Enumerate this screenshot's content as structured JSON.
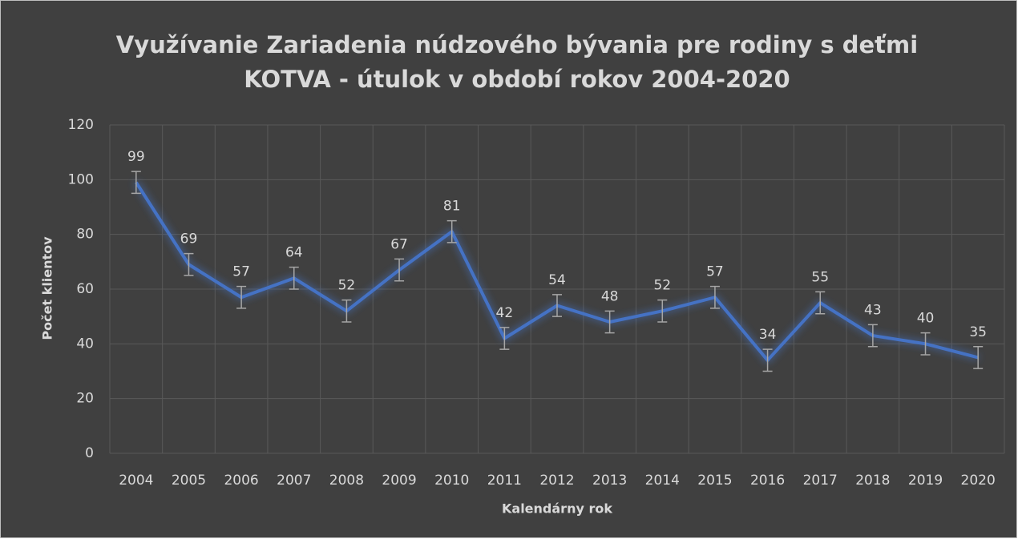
{
  "chart_data": {
    "type": "line",
    "title": [
      "Využívanie Zariadenia núdzového bývania pre rodiny s deťmi",
      "KOTVA - útulok v období rokov 2004-2020"
    ],
    "x_label": "Kalendárny rok",
    "y_label": "Počet klientov",
    "categories": [
      "2004",
      "2005",
      "2006",
      "2007",
      "2008",
      "2009",
      "2010",
      "2011",
      "2012",
      "2013",
      "2014",
      "2015",
      "2016",
      "2017",
      "2018",
      "2019",
      "2020"
    ],
    "series": [
      {
        "name": "Počet klientov",
        "color": "#4472c4",
        "values": [
          99,
          69,
          57,
          64,
          52,
          67,
          81,
          42,
          54,
          48,
          52,
          57,
          34,
          55,
          43,
          40,
          35
        ],
        "errors": [
          4,
          4,
          4,
          4,
          4,
          4,
          4,
          4,
          4,
          4,
          4,
          4,
          4,
          4,
          4,
          4,
          4
        ]
      }
    ],
    "ylim": [
      0,
      120
    ],
    "yticks": [
      0,
      20,
      40,
      60,
      80,
      100,
      120
    ],
    "grid": true
  }
}
